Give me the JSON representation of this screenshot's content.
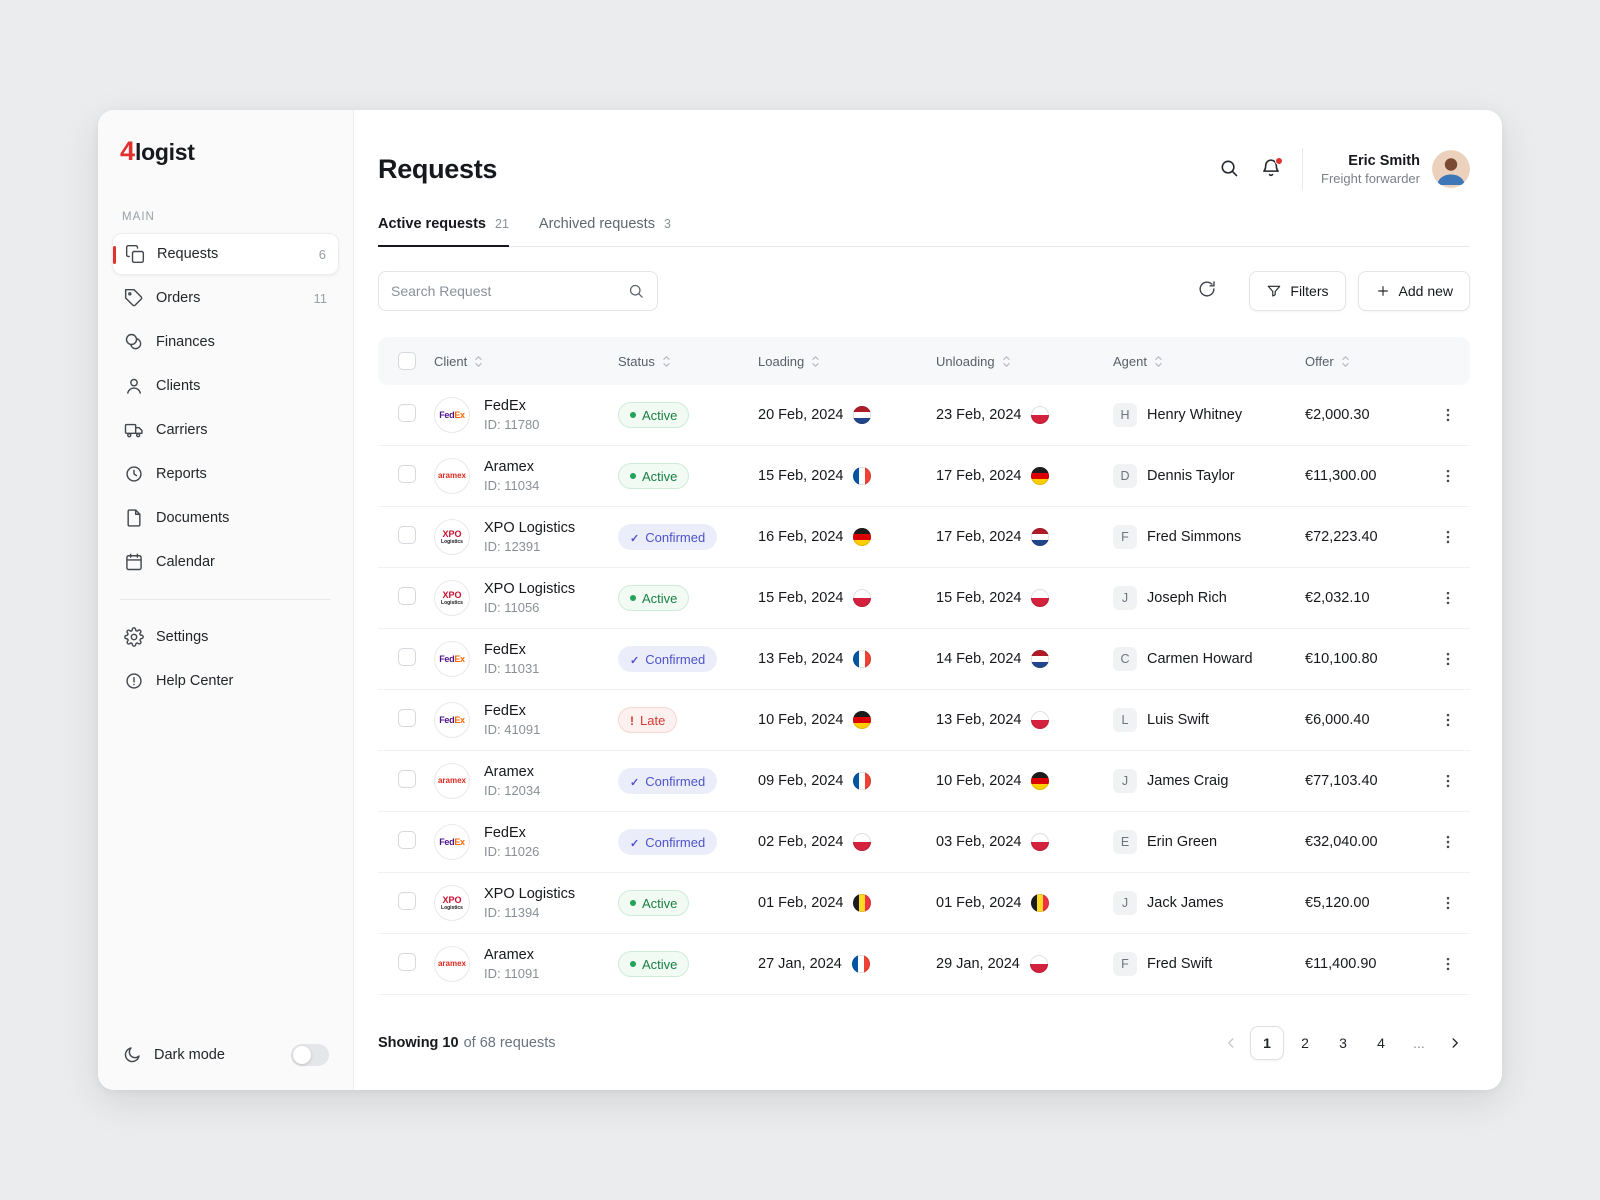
{
  "colors": {
    "accent_red": "#e0312e",
    "status_active": "#1a7f45",
    "status_confirmed": "#4d53c8",
    "status_late": "#d53a31"
  },
  "brand": {
    "logo_accent": "4",
    "logo_text": "logist"
  },
  "sidebar": {
    "section_label": "MAIN",
    "items": [
      {
        "label": "Requests",
        "icon": "requests",
        "badge": "6",
        "active": true
      },
      {
        "label": "Orders",
        "icon": "orders",
        "badge": "11"
      },
      {
        "label": "Finances",
        "icon": "finances"
      },
      {
        "label": "Clients",
        "icon": "clients"
      },
      {
        "label": "Carriers",
        "icon": "carriers"
      },
      {
        "label": "Reports",
        "icon": "reports"
      },
      {
        "label": "Documents",
        "icon": "documents"
      },
      {
        "label": "Calendar",
        "icon": "calendar"
      }
    ],
    "footer_items": [
      {
        "label": "Settings",
        "icon": "settings"
      },
      {
        "label": "Help Center",
        "icon": "help"
      }
    ],
    "dark_mode_label": "Dark mode"
  },
  "header": {
    "title": "Requests",
    "user_name": "Eric Smith",
    "user_role": "Freight forwarder"
  },
  "tabs": [
    {
      "label": "Active requests",
      "count": "21",
      "active": true
    },
    {
      "label": "Archived requests",
      "count": "3",
      "active": false
    }
  ],
  "toolbar": {
    "search_placeholder": "Search Request",
    "filters_label": "Filters",
    "add_new_label": "Add new"
  },
  "logos": {
    "fedex": {
      "parts": [
        {
          "text": "Fed",
          "color": "#4d148c"
        },
        {
          "text": "Ex",
          "color": "#ff6600"
        }
      ]
    },
    "aramex": {
      "parts": [
        {
          "text": "aramex",
          "color": "#dc291e"
        }
      ]
    },
    "xpo": {
      "parts": [
        {
          "text": "XPO",
          "color": "#c8102e"
        },
        {
          "text": "Logistics",
          "color": "#16181d"
        }
      ]
    }
  },
  "table": {
    "columns": [
      "Client",
      "Status",
      "Loading",
      "Unloading",
      "Agent",
      "Offer"
    ],
    "rows": [
      {
        "client": {
          "name": "FedEx",
          "id_label": "ID: 11780",
          "logo": "fedex"
        },
        "status": {
          "label": "Active",
          "kind": "active"
        },
        "loading": {
          "date": "20 Feb, 2024",
          "flag": "nl"
        },
        "unloading": {
          "date": "23 Feb, 2024",
          "flag": "pl"
        },
        "agent": {
          "initial": "H",
          "name": "Henry Whitney"
        },
        "offer": "€2,000.30"
      },
      {
        "client": {
          "name": "Aramex",
          "id_label": "ID: 11034",
          "logo": "aramex"
        },
        "status": {
          "label": "Active",
          "kind": "active"
        },
        "loading": {
          "date": "15 Feb, 2024",
          "flag": "fr"
        },
        "unloading": {
          "date": "17 Feb, 2024",
          "flag": "de"
        },
        "agent": {
          "initial": "D",
          "name": "Dennis Taylor"
        },
        "offer": "€11,300.00"
      },
      {
        "client": {
          "name": "XPO Logistics",
          "id_label": "ID: 12391",
          "logo": "xpo"
        },
        "status": {
          "label": "Confirmed",
          "kind": "confirmed"
        },
        "loading": {
          "date": "16 Feb, 2024",
          "flag": "de"
        },
        "unloading": {
          "date": "17 Feb, 2024",
          "flag": "nl"
        },
        "agent": {
          "initial": "F",
          "name": "Fred Simmons"
        },
        "offer": "€72,223.40"
      },
      {
        "client": {
          "name": "XPO Logistics",
          "id_label": "ID: 11056",
          "logo": "xpo"
        },
        "status": {
          "label": "Active",
          "kind": "active"
        },
        "loading": {
          "date": "15 Feb, 2024",
          "flag": "pl"
        },
        "unloading": {
          "date": "15 Feb, 2024",
          "flag": "pl"
        },
        "agent": {
          "initial": "J",
          "name": "Joseph Rich"
        },
        "offer": "€2,032.10"
      },
      {
        "client": {
          "name": "FedEx",
          "id_label": "ID: 11031",
          "logo": "fedex"
        },
        "status": {
          "label": "Confirmed",
          "kind": "confirmed"
        },
        "loading": {
          "date": "13 Feb, 2024",
          "flag": "fr"
        },
        "unloading": {
          "date": "14 Feb, 2024",
          "flag": "nl"
        },
        "agent": {
          "initial": "C",
          "name": "Carmen Howard"
        },
        "offer": "€10,100.80"
      },
      {
        "client": {
          "name": "FedEx",
          "id_label": "ID: 41091",
          "logo": "fedex"
        },
        "status": {
          "label": "Late",
          "kind": "late"
        },
        "loading": {
          "date": "10 Feb, 2024",
          "flag": "de"
        },
        "unloading": {
          "date": "13 Feb, 2024",
          "flag": "pl"
        },
        "agent": {
          "initial": "L",
          "name": "Luis Swift"
        },
        "offer": "€6,000.40"
      },
      {
        "client": {
          "name": "Aramex",
          "id_label": "ID: 12034",
          "logo": "aramex"
        },
        "status": {
          "label": "Confirmed",
          "kind": "confirmed"
        },
        "loading": {
          "date": "09 Feb, 2024",
          "flag": "fr"
        },
        "unloading": {
          "date": "10 Feb, 2024",
          "flag": "de"
        },
        "agent": {
          "initial": "J",
          "name": "James Craig"
        },
        "offer": "€77,103.40"
      },
      {
        "client": {
          "name": "FedEx",
          "id_label": "ID: 11026",
          "logo": "fedex"
        },
        "status": {
          "label": "Confirmed",
          "kind": "confirmed"
        },
        "loading": {
          "date": "02 Feb, 2024",
          "flag": "pl"
        },
        "unloading": {
          "date": "03 Feb, 2024",
          "flag": "pl"
        },
        "agent": {
          "initial": "E",
          "name": "Erin Green"
        },
        "offer": "€32,040.00"
      },
      {
        "client": {
          "name": "XPO Logistics",
          "id_label": "ID: 11394",
          "logo": "xpo"
        },
        "status": {
          "label": "Active",
          "kind": "active"
        },
        "loading": {
          "date": "01 Feb, 2024",
          "flag": "be"
        },
        "unloading": {
          "date": "01 Feb, 2024",
          "flag": "be"
        },
        "agent": {
          "initial": "J",
          "name": "Jack James"
        },
        "offer": "€5,120.00"
      },
      {
        "client": {
          "name": "Aramex",
          "id_label": "ID: 11091",
          "logo": "aramex"
        },
        "status": {
          "label": "Active",
          "kind": "active"
        },
        "loading": {
          "date": "27 Jan, 2024",
          "flag": "fr"
        },
        "unloading": {
          "date": "29 Jan, 2024",
          "flag": "pl"
        },
        "agent": {
          "initial": "F",
          "name": "Fred Swift"
        },
        "offer": "€11,400.90"
      }
    ]
  },
  "footer": {
    "showing_bold": "Showing 10",
    "showing_rest": "of 68 requests",
    "pages": [
      "1",
      "2",
      "3",
      "4",
      "..."
    ],
    "active_page": "1"
  }
}
